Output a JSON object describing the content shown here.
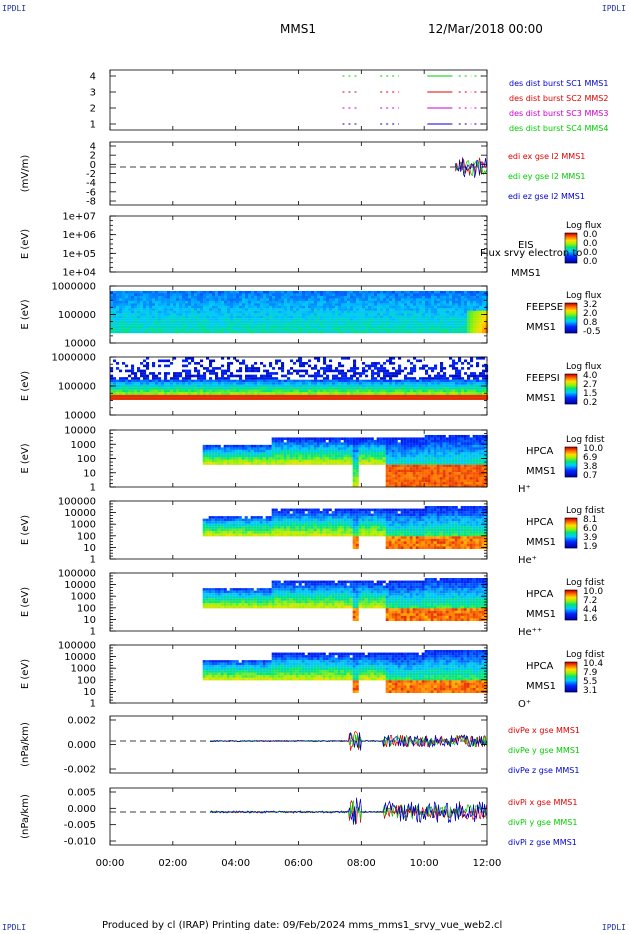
{
  "corners": {
    "tl": "IPDLI",
    "tr": "IPDLI",
    "bl": "IPDLI",
    "br": "IPDLI"
  },
  "header": {
    "spacecraft": "MMS1",
    "date": "12/Mar/2018 00:00"
  },
  "footer": {
    "text": "Produced by cl (IRAP)   Printing date: 09/Feb/2024   mms_mms1_srvy_vue_web2.cl"
  },
  "colors": {
    "red": "#e00000",
    "green": "#00cc00",
    "blue": "#0000cc",
    "magenta": "#cc00cc"
  },
  "chart_data": {
    "type": "multi-panel time series / spectrogram",
    "time_axis": {
      "start_hour": 0,
      "end_hour": 12,
      "ticks": [
        {
          "h": 0,
          "label": "00:00"
        },
        {
          "h": 2,
          "label": "02:00"
        },
        {
          "h": 4,
          "label": "04:00"
        },
        {
          "h": 6,
          "label": "06:00"
        },
        {
          "h": 8,
          "label": "08:00"
        },
        {
          "h": 10,
          "label": "10:00"
        },
        {
          "h": 12,
          "label": "12:00"
        }
      ]
    },
    "panels": [
      {
        "id": "burst",
        "kind": "burst",
        "ylabel": "",
        "ticks": [
          {
            "v": 4,
            "label": "4"
          },
          {
            "v": 3,
            "label": "3"
          },
          {
            "v": 2,
            "label": "2"
          },
          {
            "v": 1,
            "label": "1"
          }
        ],
        "legend": [
          {
            "text": "des dist burst SC1 MMS1",
            "color": "#0000cc"
          },
          {
            "text": "des dist burst SC2 MMS2",
            "color": "#e00000"
          },
          {
            "text": "des dist burst SC3 MMS3",
            "color": "#cc00cc"
          },
          {
            "text": "des dist burst SC4 MMS4",
            "color": "#00cc00"
          }
        ],
        "intervals_hours": [
          [
            7.4,
            7.9
          ],
          [
            8.6,
            9.2
          ],
          [
            10.1,
            10.9
          ],
          [
            11.1,
            11.5
          ],
          [
            11.6,
            12.0
          ]
        ]
      },
      {
        "id": "edi",
        "kind": "line",
        "ylabel": "(mV/m)",
        "ticks": [
          {
            "v": 4,
            "label": "4"
          },
          {
            "v": 2,
            "label": "2"
          },
          {
            "v": 0,
            "label": "0"
          },
          {
            "v": -2,
            "label": "-2"
          },
          {
            "v": -4,
            "label": "-4"
          },
          {
            "v": -6,
            "label": "-6"
          },
          {
            "v": -8,
            "label": "-8"
          }
        ],
        "legend": [
          {
            "text": "edi ex gse l2 MMS1",
            "color": "#e00000"
          },
          {
            "text": "edi ey gse l2 MMS1",
            "color": "#00cc00"
          },
          {
            "text": "edi ez gse l2 MMS1",
            "color": "#0000cc"
          }
        ]
      },
      {
        "id": "eis",
        "kind": "empty",
        "ylabel": "E (eV)",
        "ticks": [
          {
            "label": "1e+07"
          },
          {
            "label": "1e+06"
          },
          {
            "label": "1e+05"
          },
          {
            "label": "1e+04"
          }
        ],
        "labels": [
          "EIS",
          "MMS1"
        ],
        "overlay": "Flux srvy electron to",
        "cbar": {
          "title": "Log flux",
          "ticks": [
            "0.0",
            "0.0",
            "0.0",
            "0.0"
          ]
        }
      },
      {
        "id": "feepse",
        "kind": "spectro",
        "ylabel": "E (eV)",
        "ticks": [
          {
            "label": "1000000"
          },
          {
            "label": "100000"
          },
          {
            "label": "10000"
          }
        ],
        "labels": [
          "FEEPSE",
          "MMS1"
        ],
        "cbar": {
          "title": "Log flux",
          "ticks": [
            "3.2",
            "2.0",
            "0.8",
            "-0.5"
          ]
        }
      },
      {
        "id": "feepsi",
        "kind": "spectro",
        "ylabel": "E (eV)",
        "ticks": [
          {
            "label": "1000000"
          },
          {
            "label": "100000"
          },
          {
            "label": "10000"
          }
        ],
        "labels": [
          "FEEPSI",
          "MMS1"
        ],
        "cbar": {
          "title": "Log flux",
          "ticks": [
            "4.0",
            "2.7",
            "1.5",
            "0.2"
          ]
        }
      },
      {
        "id": "hpca_h",
        "kind": "spectro",
        "ylabel": "E (eV)",
        "ticks": [
          {
            "label": "10000"
          },
          {
            "label": "1000"
          },
          {
            "label": "100"
          },
          {
            "label": "10"
          },
          {
            "label": "1"
          }
        ],
        "labels": [
          "HPCA",
          "MMS1",
          "H⁺"
        ],
        "cbar": {
          "title": "Log fdist",
          "ticks": [
            "10.0",
            "6.9",
            "3.8",
            "0.7"
          ]
        }
      },
      {
        "id": "hpca_he",
        "kind": "spectro",
        "ylabel": "E (eV)",
        "ticks": [
          {
            "label": "100000"
          },
          {
            "label": "10000"
          },
          {
            "label": "1000"
          },
          {
            "label": "100"
          },
          {
            "label": "10"
          },
          {
            "label": "1"
          }
        ],
        "labels": [
          "HPCA",
          "MMS1",
          "He⁺"
        ],
        "cbar": {
          "title": "Log fdist",
          "ticks": [
            "8.1",
            "6.0",
            "3.9",
            "1.9"
          ]
        }
      },
      {
        "id": "hpca_hepp",
        "kind": "spectro",
        "ylabel": "E (eV)",
        "ticks": [
          {
            "label": "100000"
          },
          {
            "label": "10000"
          },
          {
            "label": "1000"
          },
          {
            "label": "100"
          },
          {
            "label": "10"
          },
          {
            "label": "1"
          }
        ],
        "labels": [
          "HPCA",
          "MMS1",
          "He⁺⁺"
        ],
        "cbar": {
          "title": "Log fdist",
          "ticks": [
            "10.0",
            "7.2",
            "4.4",
            "1.6"
          ]
        }
      },
      {
        "id": "hpca_o",
        "kind": "spectro",
        "ylabel": "E (eV)",
        "ticks": [
          {
            "label": "100000"
          },
          {
            "label": "10000"
          },
          {
            "label": "1000"
          },
          {
            "label": "100"
          },
          {
            "label": "10"
          },
          {
            "label": "1"
          }
        ],
        "labels": [
          "HPCA",
          "MMS1",
          "O⁺"
        ],
        "cbar": {
          "title": "Log fdist",
          "ticks": [
            "10.4",
            "7.9",
            "5.5",
            "3.1"
          ]
        }
      },
      {
        "id": "divpe",
        "kind": "line",
        "ylabel": "(nPa/km)",
        "ticks": [
          {
            "v": 0.002,
            "label": "0.002"
          },
          {
            "v": 0,
            "label": "0.000"
          },
          {
            "v": -0.002,
            "label": "-0.002"
          }
        ],
        "legend": [
          {
            "text": "divPe x gse MMS1",
            "color": "#e00000"
          },
          {
            "text": "divPe y gse MMS1",
            "color": "#00cc00"
          },
          {
            "text": "divPe z gse MMS1",
            "color": "#0000cc"
          }
        ]
      },
      {
        "id": "divpi",
        "kind": "line",
        "ylabel": "(nPa/km)",
        "ticks": [
          {
            "v": 0.005,
            "label": "0.005"
          },
          {
            "v": 0,
            "label": "0.000"
          },
          {
            "v": -0.005,
            "label": "-0.005"
          },
          {
            "v": -0.01,
            "label": "-0.010"
          }
        ],
        "legend": [
          {
            "text": "divPi x gse MMS1",
            "color": "#e00000"
          },
          {
            "text": "divPi y gse MMS1",
            "color": "#00cc00"
          },
          {
            "text": "divPi z gse MMS1",
            "color": "#0000cc"
          }
        ]
      }
    ]
  }
}
